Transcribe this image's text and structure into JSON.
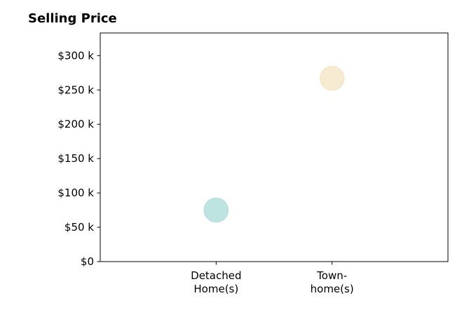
{
  "chart_data": {
    "type": "scatter",
    "title": "Selling Price",
    "xlabel": "",
    "ylabel": "",
    "categories": [
      [
        "Detached",
        "Home(s)"
      ],
      [
        "Town-",
        "home(s)"
      ]
    ],
    "points": [
      {
        "category": 0,
        "value": 75000,
        "color": "#b2dfdb"
      },
      {
        "category": 1,
        "value": 267000,
        "color": "#f5e6c8"
      }
    ],
    "yticks": [
      {
        "value": 0,
        "label": "$0"
      },
      {
        "value": 50000,
        "label": "$50 k"
      },
      {
        "value": 100000,
        "label": "$100 k"
      },
      {
        "value": 150000,
        "label": "$150 k"
      },
      {
        "value": 200000,
        "label": "$200 k"
      },
      {
        "value": 250000,
        "label": "$250 k"
      },
      {
        "value": 300000,
        "label": "$300 k"
      }
    ],
    "ylim": [
      0,
      333000
    ],
    "xlim": [
      -1,
      2
    ],
    "grid": false,
    "legend": "none"
  }
}
